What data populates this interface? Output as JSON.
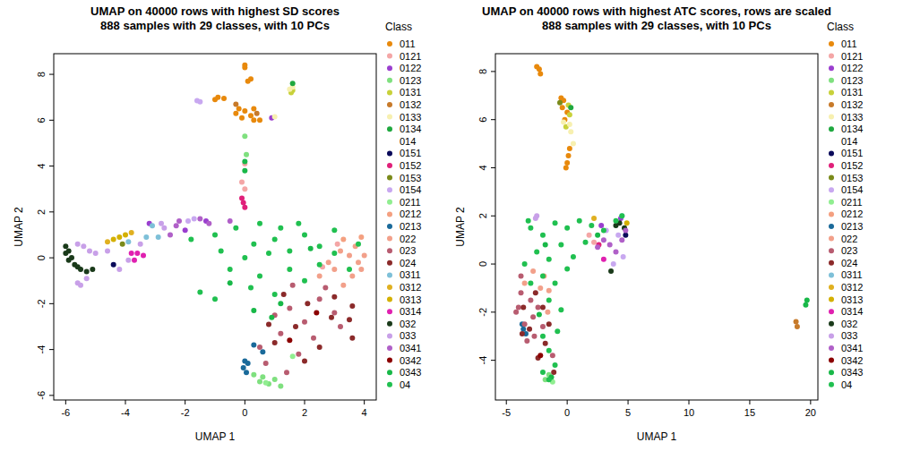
{
  "chart_data": [
    {
      "type": "scatter",
      "title": "UMAP on 40000 rows with highest SD scores",
      "subtitle": "888 samples with 29 classes, with 10 PCs",
      "x_label": "UMAP 1",
      "y_label": "UMAP 2",
      "legend_title": "Class",
      "legend": "right",
      "marker": "circle",
      "xlim": [
        -6.4,
        4.4
      ],
      "ylim": [
        -6.2,
        8.9
      ],
      "xticks": [
        -6,
        -4,
        -2,
        0,
        2,
        4
      ],
      "yticks": [
        -6,
        -4,
        -2,
        0,
        2,
        4,
        6,
        8
      ],
      "series": [
        {
          "name": "011",
          "color": "#E8890C",
          "x": [
            -0.9,
            -1.0,
            -0.7,
            -0.2,
            0,
            0.2,
            0.3,
            -0.3,
            0.1,
            0.2,
            0,
            0,
            0.5,
            -0.1,
            0.3
          ],
          "values": [
            7.0,
            6.9,
            6.95,
            6.5,
            6.4,
            6.2,
            6.5,
            6.3,
            7.7,
            7.8,
            8.4,
            8.3,
            6.0,
            6.1,
            6.0
          ]
        },
        {
          "name": "0121",
          "color": "#F4A6A6",
          "x": [
            0,
            -0.1,
            0,
            2.6,
            3.1
          ],
          "values": [
            4.1,
            3.3,
            3.0,
            -0.4,
            0.6
          ]
        },
        {
          "name": "0122",
          "color": "#9A3ECF",
          "x": [
            0.9,
            -3.2,
            -1.3,
            -2.0
          ],
          "values": [
            6.1,
            1.5,
            1.6,
            1.2
          ]
        },
        {
          "name": "0123",
          "color": "#7FE07F",
          "x": [
            0,
            0.05,
            0.5,
            0.8,
            1.0,
            0.6,
            1.2,
            0.3
          ],
          "values": [
            5.3,
            4.5,
            -5.4,
            -5.5,
            -5.3,
            -5.2,
            -5.6,
            -5.1
          ]
        },
        {
          "name": "0131",
          "color": "#C8D13A",
          "x": [
            1.6,
            1.55
          ],
          "values": [
            7.3,
            7.2
          ]
        },
        {
          "name": "0132",
          "color": "#C77A2A",
          "x": [
            -0.3,
            0.4
          ],
          "values": [
            6.7,
            6.3
          ]
        },
        {
          "name": "0133",
          "color": "#F7F0B0",
          "x": [
            1.6,
            1.5,
            1.0
          ],
          "values": [
            7.45,
            7.35,
            6.15
          ]
        },
        {
          "name": "0134",
          "color": "#1FA83F",
          "x": [
            1.6
          ],
          "values": [
            7.6
          ]
        },
        {
          "name": "014",
          "color": "#FFFFFF",
          "x": [],
          "values": []
        },
        {
          "name": "0151",
          "color": "#0A0A5A",
          "x": [
            -4.4
          ],
          "values": [
            -0.3
          ]
        },
        {
          "name": "0152",
          "color": "#E0207A",
          "x": [
            -0.1,
            0,
            -0.05
          ],
          "values": [
            2.6,
            2.2,
            2.4
          ]
        },
        {
          "name": "0153",
          "color": "#7A8A1A",
          "x": [
            -4.1
          ],
          "values": [
            0.6
          ]
        },
        {
          "name": "0154",
          "color": "#C8A8F0",
          "x": [
            -1.5,
            -1.6,
            -1.7,
            -1.9
          ],
          "values": [
            6.8,
            6.85,
            1.7,
            1.6
          ]
        },
        {
          "name": "0211",
          "color": "#90EE90",
          "x": [
            0.7,
            1.6
          ],
          "values": [
            -5.45,
            -4.3
          ]
        },
        {
          "name": "0212",
          "color": "#F4A080",
          "x": [
            3.3,
            3.9
          ],
          "values": [
            0.8,
            0.9
          ]
        },
        {
          "name": "0213",
          "color": "#1A6A9A",
          "x": [
            0,
            -0.05,
            0.1,
            0.3,
            0.6,
            0.05
          ],
          "values": [
            -4.5,
            -4.8,
            -4.6,
            -3.8,
            -4.1,
            -5.0
          ]
        },
        {
          "name": "022",
          "color": "#F2A08A",
          "x": [
            3.2,
            3.5,
            3.8,
            3.0,
            3.6,
            4.0,
            3.3,
            2.8,
            3.7,
            3.9,
            2.5
          ],
          "values": [
            0.3,
            0.1,
            -0.2,
            -0.5,
            -0.8,
            0.1,
            -1.2,
            -0.2,
            0.5,
            -0.5,
            -0.8
          ]
        },
        {
          "name": "023",
          "color": "#B85C70",
          "x": [
            1,
            1.5,
            2,
            2.5,
            3,
            1.2,
            0.5,
            1.8,
            2.3,
            0.7,
            1.4,
            3.2,
            2.7,
            1.6
          ],
          "values": [
            -2.5,
            -2.2,
            -2.8,
            -1.8,
            -2.4,
            -3.3,
            -3.9,
            -4.2,
            -3.5,
            -4.6,
            -5.0,
            -3.0,
            -1.3,
            -1.2
          ]
        },
        {
          "name": "024",
          "color": "#8B2A2A",
          "x": [
            1.3,
            2.1,
            2.9,
            3.5,
            3.6,
            1.7,
            2.5,
            2.0,
            1.0,
            3.0,
            3.6,
            0.8
          ],
          "values": [
            -1.6,
            -2.0,
            -2.6,
            -2.7,
            -3.5,
            -3.0,
            -3.9,
            -4.5,
            -3.7,
            -1.7,
            -2.1,
            -2.9
          ]
        },
        {
          "name": "0311",
          "color": "#7EC0D8",
          "x": [
            -3.9,
            -3.3,
            -2.9,
            -3.1
          ],
          "values": [
            0.7,
            0.9,
            0.9,
            1.4
          ]
        },
        {
          "name": "0312",
          "color": "#E0B020",
          "x": [
            -3.8,
            -4.6
          ],
          "values": [
            1.1,
            0.7
          ]
        },
        {
          "name": "0313",
          "color": "#D4B000",
          "x": [
            -4.4,
            -4.2,
            -4.0
          ],
          "values": [
            0.8,
            0.9,
            1.0
          ]
        },
        {
          "name": "0314",
          "color": "#E020B0",
          "x": [
            -3.8,
            -3.6,
            -3.4,
            -3.7
          ],
          "values": [
            0.2,
            0.2,
            0.1,
            -0.1
          ]
        },
        {
          "name": "032",
          "color": "#1A3A1A",
          "x": [
            -6,
            -5.9,
            -5.8,
            -5.7,
            -5.6,
            -5.5,
            -5.3,
            -5.1,
            -5.9,
            -6
          ],
          "values": [
            0.5,
            0.3,
            0,
            -0.3,
            -0.4,
            -0.5,
            -0.6,
            -0.5,
            -0.1,
            0.2
          ]
        },
        {
          "name": "033",
          "color": "#C8A0E8",
          "x": [
            -5.6,
            -5.4,
            -5.2,
            -5.0,
            -5.6,
            -5.5,
            -5.3,
            -4.6,
            -2.7,
            -2.8,
            -3.5,
            -3.9,
            -4.2
          ],
          "values": [
            0.6,
            0.5,
            0.3,
            0.2,
            -1.1,
            -1.2,
            -0.9,
            0.3,
            1.3,
            1.5,
            0.6,
            -0.1,
            -0.5
          ]
        },
        {
          "name": "0341",
          "color": "#B060C8",
          "x": [
            -2.2,
            -2.3,
            -1.5,
            -2.5,
            -0.5,
            -1.2
          ],
          "values": [
            1.6,
            1.4,
            1.7,
            1.0,
            1.6,
            1.5
          ]
        },
        {
          "name": "0342",
          "color": "#8B0000",
          "x": [
            2.4,
            1.5
          ],
          "values": [
            -2.4,
            -3.6
          ]
        },
        {
          "name": "0343",
          "color": "#18B848",
          "x": [
            0,
            0,
            0.3,
            1.2,
            -0.5,
            2.2,
            0.9
          ],
          "values": [
            3.8,
            4.2,
            -2.3,
            -2.0,
            -1.1,
            0.4,
            -2.6
          ]
        },
        {
          "name": "04",
          "color": "#20C050",
          "x": [
            -1,
            0.5,
            1,
            1.5,
            2,
            2.5,
            3,
            0,
            -0.5,
            0.5,
            1.5,
            2,
            -1.5,
            -1,
            0.2,
            1,
            3,
            3.5,
            0.8,
            -1.8,
            -0.3,
            1.8,
            2.5,
            -0.8,
            0.3,
            1.2,
            3.8
          ],
          "values": [
            1,
            1.5,
            0.8,
            0.3,
            1,
            0.5,
            0.2,
            0,
            -0.5,
            -0.8,
            -0.5,
            -1,
            -1.5,
            -1.8,
            -1.3,
            -1.6,
            1.2,
            -0.5,
            0.2,
            0.8,
            1.3,
            1.5,
            -0.3,
            0.3,
            0.6,
            1.3,
            0.6
          ]
        }
      ]
    },
    {
      "type": "scatter",
      "title": "UMAP on 40000 rows with highest ATC scores, rows are scaled",
      "subtitle": "888 samples with 29 classes, with 10 PCs",
      "x_label": "UMAP 1",
      "y_label": "UMAP 2",
      "legend_title": "Class",
      "legend": "right",
      "marker": "circle",
      "xlim": [
        -5.9,
        20.6
      ],
      "ylim": [
        -5.65,
        8.74
      ],
      "xticks": [
        -5,
        0,
        5,
        10,
        15,
        20
      ],
      "yticks": [
        -4,
        -2,
        0,
        2,
        4,
        6,
        8
      ],
      "series": [
        {
          "name": "011",
          "color": "#E8890C",
          "x": [
            -2.5,
            -2.3,
            -2.2,
            -0.5,
            -0.3,
            -0.4,
            0,
            -0.2,
            0.1,
            0,
            -0.1,
            0.2
          ],
          "values": [
            8.2,
            8.1,
            7.9,
            6.9,
            6.8,
            6.5,
            6.3,
            6.0,
            4.5,
            4.2,
            4.0,
            4.8
          ]
        },
        {
          "name": "0121",
          "color": "#F4A6A6",
          "x": [
            1.8,
            2.2
          ],
          "values": [
            1.2,
            0.9
          ]
        },
        {
          "name": "0122",
          "color": "#9A3ECF",
          "x": [
            2.8,
            4.4
          ],
          "values": [
            1.6,
            1.9
          ]
        },
        {
          "name": "0123",
          "color": "#7FE07F",
          "x": [
            -1.8,
            -1.5
          ],
          "values": [
            -4.8,
            -4.6
          ]
        },
        {
          "name": "0131",
          "color": "#C8D13A",
          "x": [
            0.1,
            0.2,
            -0.1
          ],
          "values": [
            6.6,
            6.2,
            5.7
          ]
        },
        {
          "name": "0132",
          "color": "#C77A2A",
          "x": [
            18.8,
            18.9
          ],
          "values": [
            -2.4,
            -2.6
          ]
        },
        {
          "name": "0133",
          "color": "#F7F0B0",
          "x": [
            0.2,
            0.3,
            -0.3,
            0.5
          ],
          "values": [
            5.8,
            5.5,
            5.9,
            5.0
          ]
        },
        {
          "name": "0134",
          "color": "#1FA83F",
          "x": [
            0.3
          ],
          "values": [
            6.5
          ]
        },
        {
          "name": "014",
          "color": "#FFFFFF",
          "x": [],
          "values": []
        },
        {
          "name": "0151",
          "color": "#0A0A5A",
          "x": [
            4.8
          ],
          "values": [
            1.2
          ]
        },
        {
          "name": "0152",
          "color": "#E0207A",
          "x": [
            2.6
          ],
          "values": [
            0.8
          ]
        },
        {
          "name": "0153",
          "color": "#7A8A1A",
          "x": [
            -0.6
          ],
          "values": [
            6.7
          ]
        },
        {
          "name": "0154",
          "color": "#C8A8F0",
          "x": [
            3.2,
            4.2,
            4.6,
            3.8
          ],
          "values": [
            1.4,
            1.2,
            0.3,
            0
          ]
        },
        {
          "name": "0211",
          "color": "#90EE90",
          "x": [
            -1.2
          ],
          "values": [
            -4.9
          ]
        },
        {
          "name": "0212",
          "color": "#F4A080",
          "x": [
            -1.9
          ],
          "values": [
            -0.5
          ]
        },
        {
          "name": "0213",
          "color": "#1A6A9A",
          "x": [
            -3.6,
            -3.4,
            -3.7
          ],
          "values": [
            -2.7,
            -2.9,
            -2.5
          ]
        },
        {
          "name": "022",
          "color": "#F2A08A",
          "x": [
            -1.5,
            -3.5,
            -2.2,
            -2.8,
            -1.6
          ],
          "values": [
            -1.1,
            -0.8,
            -1.0,
            -0.3,
            -2
          ]
        },
        {
          "name": "023",
          "color": "#B85C70",
          "x": [
            -4,
            -3.8,
            -3.5,
            -3,
            -2.8,
            -2.4,
            -3.3,
            -2.7,
            -1.2,
            -2,
            -4.2,
            -3.8
          ],
          "values": [
            -1.8,
            -1.2,
            -2.5,
            -1.5,
            -2.2,
            -1.8,
            -3.2,
            -3.0,
            -3.8,
            -2.6,
            -2,
            -0.5
          ]
        },
        {
          "name": "024",
          "color": "#8B2A2A",
          "x": [
            -3.6,
            -2.6,
            -3.1,
            -2,
            -1.5,
            -2.4,
            -1.1,
            -3.7,
            -1.8
          ],
          "values": [
            -1.8,
            -1.2,
            -2.7,
            -1.8,
            -2.5,
            -3.9,
            -4.5,
            -2.9,
            -3.3
          ]
        },
        {
          "name": "0311",
          "color": "#7EC0D8",
          "x": [
            4.5
          ],
          "values": [
            2.0
          ]
        },
        {
          "name": "0312",
          "color": "#E0B020",
          "x": [
            2.2
          ],
          "values": [
            1.9
          ]
        },
        {
          "name": "0313",
          "color": "#D4B000",
          "x": [
            4.9
          ],
          "values": [
            1.7
          ]
        },
        {
          "name": "0314",
          "color": "#E020B0",
          "x": [
            3.0
          ],
          "values": [
            0.2
          ]
        },
        {
          "name": "032",
          "color": "#1A3A1A",
          "x": [
            4.0,
            4.3,
            4.7,
            3.6
          ],
          "values": [
            1.6,
            1.7,
            1.5,
            -0.3
          ]
        },
        {
          "name": "033",
          "color": "#C8A0E8",
          "x": [
            -2.5,
            -2.6
          ],
          "values": [
            2.0,
            1.9
          ]
        },
        {
          "name": "0341",
          "color": "#B060C8",
          "x": [
            3,
            3.5,
            4,
            4.5,
            2.5,
            4.8
          ],
          "values": [
            1,
            0.8,
            0.5,
            1.0,
            0.7,
            1.4
          ]
        },
        {
          "name": "0342",
          "color": "#8B0000",
          "x": [
            -2.2
          ],
          "values": [
            -3.8
          ]
        },
        {
          "name": "0343",
          "color": "#18B848",
          "x": [
            -2.3,
            -1.8,
            2.5,
            -1.3,
            19.6,
            19.7
          ],
          "values": [
            -2.1,
            0.8,
            1.2,
            -4.7,
            -1.7,
            -1.5
          ]
        },
        {
          "name": "04",
          "color": "#20C050",
          "x": [
            -3,
            -2,
            -1,
            0,
            1,
            2,
            3,
            -2.5,
            -1.5,
            -3.5,
            -0.5,
            0.5,
            1.5,
            -2,
            -1,
            -3,
            0,
            -1.5,
            -0.5,
            -2,
            -1.5,
            -1,
            -1.5,
            -2,
            -0.8,
            -3.2,
            4,
            4.5
          ],
          "values": [
            1.5,
            1.2,
            1.7,
            1.5,
            1.8,
            1.6,
            1.4,
            0.5,
            0.2,
            0,
            0.8,
            0.3,
            0.9,
            -0.5,
            -0.8,
            -0.8,
            -0.2,
            -1.5,
            -1.9,
            -3,
            -3.6,
            -4.2,
            -4.8,
            -4.5,
            -2.8,
            1.8,
            1.8,
            2.0
          ]
        }
      ]
    }
  ]
}
